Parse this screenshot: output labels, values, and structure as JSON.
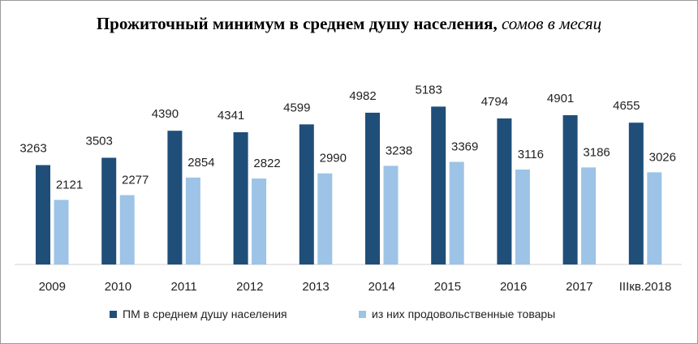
{
  "chart_data": {
    "type": "bar",
    "title": "Прожиточный минимум в среднем душу населения,",
    "title_unit": "сомов в месяц",
    "categories": [
      "2009",
      "2010",
      "2011",
      "2012",
      "2013",
      "2014",
      "2015",
      "2016",
      "2017",
      "IIIкв.2018"
    ],
    "series": [
      {
        "name": "ПМ в среднем душу населения",
        "color": "#1f4e79",
        "values": [
          3263,
          3503,
          4390,
          4341,
          4599,
          4982,
          5183,
          4794,
          4901,
          4655
        ]
      },
      {
        "name": "из них продовольственные товары",
        "color": "#9dc3e6",
        "values": [
          2121,
          2277,
          2854,
          2822,
          2990,
          3238,
          3369,
          3116,
          3186,
          3026
        ]
      }
    ],
    "ylim": [
      0,
      6000
    ],
    "xlabel": "",
    "ylabel": "",
    "grid": false,
    "legend": "bottom"
  }
}
